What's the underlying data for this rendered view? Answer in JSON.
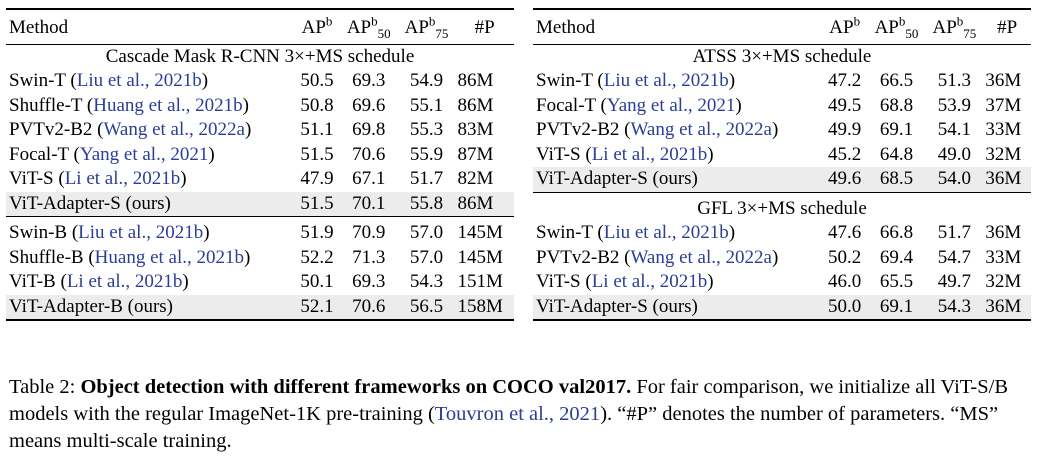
{
  "left": {
    "headers": {
      "method": "Method",
      "ap": "AP",
      "ap50": "AP",
      "ap75": "AP",
      "params": "#P",
      "sup": "b",
      "sub50": "50",
      "sub75": "75"
    },
    "group1": "Cascade Mask R-CNN 3×+MS schedule",
    "rows1": [
      {
        "name": "Swin-T (",
        "cite": "Liu et al., 2021b",
        "close": ")",
        "ap": "50.5",
        "ap50": "69.3",
        "ap75": "54.9",
        "p": "86M"
      },
      {
        "name": "Shuffle-T (",
        "cite": "Huang et al., 2021b",
        "close": ")",
        "ap": "50.8",
        "ap50": "69.6",
        "ap75": "55.1",
        "p": "86M"
      },
      {
        "name": "PVTv2-B2 (",
        "cite": "Wang et al., 2022a",
        "close": ")",
        "ap": "51.1",
        "ap50": "69.8",
        "ap75": "55.3",
        "p": "83M"
      },
      {
        "name": "Focal-T (",
        "cite": "Yang et al., 2021",
        "close": ")",
        "ap": "51.5",
        "ap50": "70.6",
        "ap75": "55.9",
        "p": "87M"
      },
      {
        "name": "ViT-S (",
        "cite": "Li et al., 2021b",
        "close": ")",
        "ap": "47.9",
        "ap50": "67.1",
        "ap75": "51.7",
        "p": "82M"
      }
    ],
    "highlight1": {
      "name": "ViT-Adapter-S (ours)",
      "ap": "51.5",
      "ap50": "70.1",
      "ap75": "55.8",
      "p": "86M"
    },
    "rows2": [
      {
        "name": "Swin-B (",
        "cite": "Liu et al., 2021b",
        "close": ")",
        "ap": "51.9",
        "ap50": "70.9",
        "ap75": "57.0",
        "p": "145M"
      },
      {
        "name": "Shuffle-B (",
        "cite": "Huang et al., 2021b",
        "close": ")",
        "ap": "52.2",
        "ap50": "71.3",
        "ap75": "57.0",
        "p": "145M"
      },
      {
        "name": "ViT-B (",
        "cite": "Li et al., 2021b",
        "close": ")",
        "ap": "50.1",
        "ap50": "69.3",
        "ap75": "54.3",
        "p": "151M"
      }
    ],
    "highlight2": {
      "name": "ViT-Adapter-B (ours)",
      "ap": "52.1",
      "ap50": "70.6",
      "ap75": "56.5",
      "p": "158M"
    }
  },
  "right": {
    "headers": {
      "method": "Method",
      "ap": "AP",
      "ap50": "AP",
      "ap75": "AP",
      "params": "#P",
      "sup": "b",
      "sub50": "50",
      "sub75": "75"
    },
    "group1": "ATSS 3×+MS schedule",
    "rows1": [
      {
        "name": "Swin-T (",
        "cite": "Liu et al., 2021b",
        "close": ")",
        "ap": "47.2",
        "ap50": "66.5",
        "ap75": "51.3",
        "p": "36M"
      },
      {
        "name": "Focal-T (",
        "cite": "Yang et al., 2021",
        "close": ")",
        "ap": "49.5",
        "ap50": "68.8",
        "ap75": "53.9",
        "p": "37M"
      },
      {
        "name": "PVTv2-B2 (",
        "cite": "Wang et al., 2022a",
        "close": ")",
        "ap": "49.9",
        "ap50": "69.1",
        "ap75": "54.1",
        "p": "33M"
      },
      {
        "name": "ViT-S (",
        "cite": "Li et al., 2021b",
        "close": ")",
        "ap": "45.2",
        "ap50": "64.8",
        "ap75": "49.0",
        "p": "32M"
      }
    ],
    "highlight1": {
      "name": "ViT-Adapter-S (ours)",
      "ap": "49.6",
      "ap50": "68.5",
      "ap75": "54.0",
      "p": "36M"
    },
    "group2": "GFL 3×+MS schedule",
    "rows2": [
      {
        "name": "Swin-T (",
        "cite": "Liu et al., 2021b",
        "close": ")",
        "ap": "47.6",
        "ap50": "66.8",
        "ap75": "51.7",
        "p": "36M"
      },
      {
        "name": "PVTv2-B2 (",
        "cite": "Wang et al., 2022a",
        "close": ")",
        "ap": "50.2",
        "ap50": "69.4",
        "ap75": "54.7",
        "p": "33M"
      },
      {
        "name": "ViT-S (",
        "cite": "Li et al., 2021b",
        "close": ")",
        "ap": "46.0",
        "ap50": "65.5",
        "ap75": "49.7",
        "p": "32M"
      }
    ],
    "highlight2": {
      "name": "ViT-Adapter-S (ours)",
      "ap": "50.0",
      "ap50": "69.1",
      "ap75": "54.3",
      "p": "36M"
    }
  },
  "caption": {
    "label": "Table 2: ",
    "bold": "Object detection with different frameworks on COCO val2017.",
    "text1": " For fair comparison, we initialize all ViT-S/B models with the regular ImageNet-1K pre-training (",
    "cite": "Touvron et al., 2021",
    "text2": "). “#P” denotes the number of parameters. “MS” means multi-scale training."
  }
}
